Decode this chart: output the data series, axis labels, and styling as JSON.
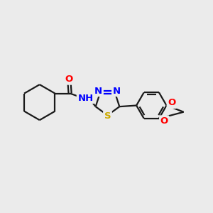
{
  "bg_color": "#ebebeb",
  "bond_color": "#1a1a1a",
  "bond_width": 1.6,
  "atom_colors": {
    "N": "#0000ff",
    "O": "#ff0000",
    "S": "#ccaa00",
    "H": "#008080",
    "C": "#1a1a1a"
  },
  "font_size": 9.5,
  "figsize": [
    3.0,
    3.0
  ],
  "dpi": 100
}
